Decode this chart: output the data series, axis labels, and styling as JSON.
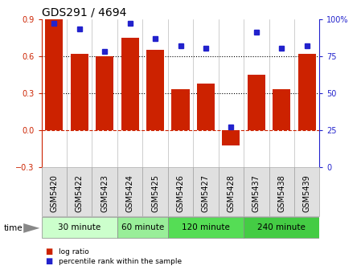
{
  "title": "GDS291 / 4694",
  "samples": [
    "GSM5420",
    "GSM5422",
    "GSM5423",
    "GSM5424",
    "GSM5425",
    "GSM5426",
    "GSM5427",
    "GSM5428",
    "GSM5437",
    "GSM5438",
    "GSM5439"
  ],
  "log_ratio": [
    0.9,
    0.62,
    0.6,
    0.75,
    0.65,
    0.33,
    0.38,
    -0.12,
    0.45,
    0.33,
    0.62
  ],
  "percentile": [
    97,
    93,
    78,
    97,
    87,
    82,
    80,
    27,
    91,
    80,
    82
  ],
  "groups": [
    {
      "label": "30 minute",
      "indices": [
        0,
        1,
        2
      ],
      "color": "#ccffcc"
    },
    {
      "label": "60 minute",
      "indices": [
        3,
        4
      ],
      "color": "#99ee99"
    },
    {
      "label": "120 minute",
      "indices": [
        5,
        6,
        7
      ],
      "color": "#55dd55"
    },
    {
      "label": "240 minute",
      "indices": [
        8,
        9,
        10
      ],
      "color": "#44cc44"
    }
  ],
  "bar_color": "#cc2200",
  "dot_color": "#2222cc",
  "ylim_left": [
    -0.3,
    0.9
  ],
  "ylim_right": [
    0,
    100
  ],
  "yticks_left": [
    -0.3,
    0.0,
    0.3,
    0.6,
    0.9
  ],
  "yticks_right": [
    0,
    25,
    50,
    75,
    100
  ],
  "hline_y": [
    0.3,
    0.6
  ],
  "zero_line_y": 0.0,
  "bg_color": "#ffffff",
  "plot_bg": "#ffffff",
  "title_fontsize": 10,
  "tick_fontsize": 7,
  "label_fontsize": 7.5
}
